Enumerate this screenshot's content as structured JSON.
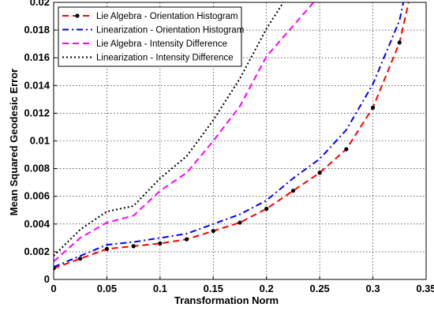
{
  "chart_data": {
    "type": "line",
    "xlabel": "Transformation Norm",
    "ylabel": "Mean Squared Geodesic Error",
    "xlim": [
      0,
      0.35
    ],
    "ylim": [
      0,
      0.02
    ],
    "xticks": [
      0,
      0.05,
      0.1,
      0.15,
      0.2,
      0.25,
      0.3,
      0.35
    ],
    "yticks": [
      0,
      0.002,
      0.004,
      0.006,
      0.008,
      0.01,
      0.012,
      0.014,
      0.016,
      0.018,
      0.02
    ],
    "xtick_labels": [
      "0",
      "0.05",
      "0.1",
      "0.15",
      "0.2",
      "0.25",
      "0.3",
      "0.35"
    ],
    "ytick_labels": [
      "0",
      "0.002",
      "0.004",
      "0.006",
      "0.008",
      "0.01",
      "0.012",
      "0.014",
      "0.016",
      "0.018",
      "0.02"
    ],
    "grid": true,
    "legend_position": "top-left",
    "series": [
      {
        "name": "Lie Algebra - Orientation Histogram",
        "color": "#ff0000",
        "dash": "dashed",
        "marker": "dot",
        "x": [
          0,
          0.025,
          0.05,
          0.075,
          0.1,
          0.125,
          0.15,
          0.175,
          0.2,
          0.225,
          0.25,
          0.275,
          0.3,
          0.325,
          0.335
        ],
        "y": [
          0.0008,
          0.0015,
          0.0022,
          0.0024,
          0.0026,
          0.0029,
          0.0035,
          0.0041,
          0.0051,
          0.0064,
          0.0077,
          0.0094,
          0.0124,
          0.0171,
          0.0205
        ]
      },
      {
        "name": "Linearization - Orientation Histogram",
        "color": "#0000ff",
        "dash": "dashdot",
        "marker": "none",
        "x": [
          0,
          0.025,
          0.05,
          0.075,
          0.1,
          0.125,
          0.15,
          0.175,
          0.2,
          0.225,
          0.25,
          0.275,
          0.3,
          0.325,
          0.33
        ],
        "y": [
          0.0009,
          0.0017,
          0.0025,
          0.0027,
          0.003,
          0.0033,
          0.004,
          0.0047,
          0.0057,
          0.0073,
          0.0087,
          0.0108,
          0.0141,
          0.0187,
          0.0205
        ]
      },
      {
        "name": "Lie Algebra - Intensity Difference",
        "color": "#ff00ff",
        "dash": "dashed",
        "marker": "none",
        "x": [
          0,
          0.025,
          0.05,
          0.075,
          0.1,
          0.125,
          0.15,
          0.175,
          0.2,
          0.225,
          0.25
        ],
        "y": [
          0.0013,
          0.003,
          0.0041,
          0.0046,
          0.0064,
          0.0077,
          0.01,
          0.0125,
          0.0161,
          0.0183,
          0.0205
        ]
      },
      {
        "name": "Linearization - Intensity Difference",
        "color": "#000000",
        "dash": "dotted",
        "marker": "none",
        "x": [
          0,
          0.025,
          0.05,
          0.075,
          0.1,
          0.125,
          0.15,
          0.175,
          0.2,
          0.22
        ],
        "y": [
          0.0017,
          0.0036,
          0.0049,
          0.0053,
          0.0073,
          0.0089,
          0.0115,
          0.0145,
          0.0181,
          0.0205
        ]
      }
    ]
  }
}
